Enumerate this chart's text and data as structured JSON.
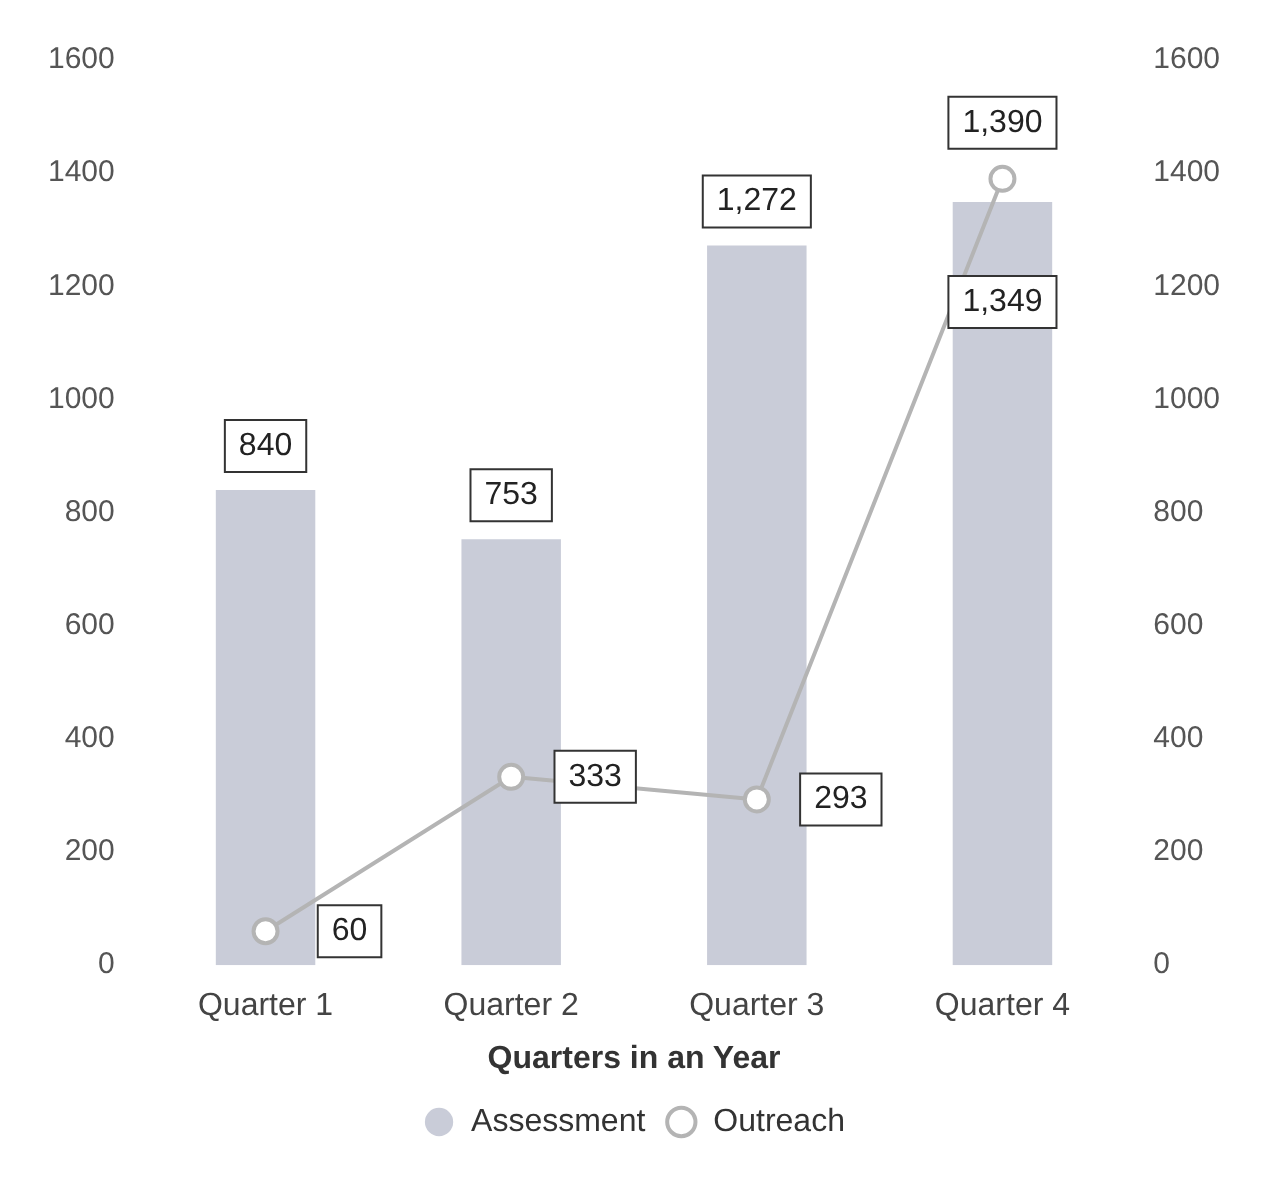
{
  "chart_data": {
    "type": "bar",
    "xlabel": "Quarters in an Year",
    "categories": [
      "Quarter 1",
      "Quarter 2",
      "Quarter 3",
      "Quarter 4"
    ],
    "series": [
      {
        "name": "Assessment",
        "type": "bar",
        "color": "#c9ccd8",
        "values": [
          840,
          753,
          1272,
          1349
        ],
        "value_labels": [
          "840",
          "753",
          "1,272",
          "1,349"
        ]
      },
      {
        "name": "Outreach",
        "type": "line",
        "axis": "y2",
        "color": "#b4b4b4",
        "values": [
          60,
          333,
          293,
          1390
        ],
        "value_labels": [
          "60",
          "333",
          "293",
          "1,390"
        ]
      }
    ],
    "ylim": [
      0,
      1600
    ],
    "yticks": [
      0,
      200,
      400,
      600,
      800,
      1000,
      1200,
      1400,
      1600
    ],
    "y2lim": [
      0,
      1600
    ],
    "y2ticks": [
      0,
      200,
      400,
      600,
      800,
      1000,
      1200,
      1400,
      1600
    ],
    "legend": "bottom",
    "marker": "circle",
    "grid": false
  }
}
